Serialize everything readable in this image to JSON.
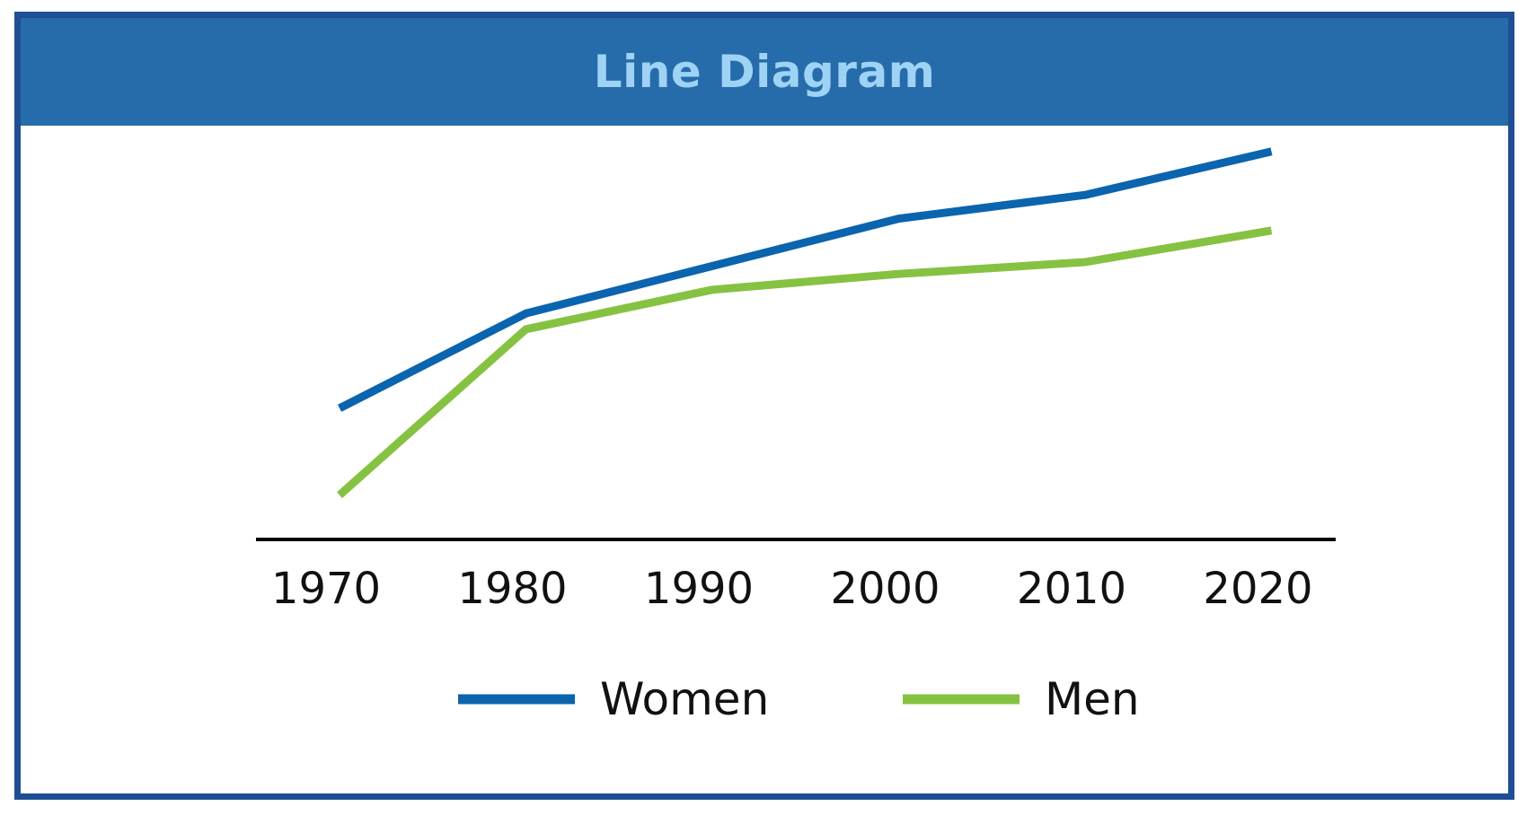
{
  "title": "Line Diagram",
  "colors": {
    "frame": "#1f4e95",
    "title_bar": "#266cab",
    "title_text": "#9fd3f5",
    "axis": "#000000"
  },
  "chart_data": {
    "type": "line",
    "title": "Line Diagram",
    "x": [
      "1970",
      "1980",
      "1990",
      "2000",
      "2010",
      "2020"
    ],
    "xlabel": "",
    "ylabel": "",
    "ylim": [
      0,
      100
    ],
    "grid": false,
    "legend_position": "bottom",
    "series": [
      {
        "name": "Women",
        "color": "#0a64ae",
        "values": [
          33,
          57,
          69,
          81,
          87,
          98
        ]
      },
      {
        "name": "Men",
        "color": "#86c242",
        "values": [
          11,
          53,
          63,
          67,
          70,
          78
        ]
      }
    ]
  }
}
